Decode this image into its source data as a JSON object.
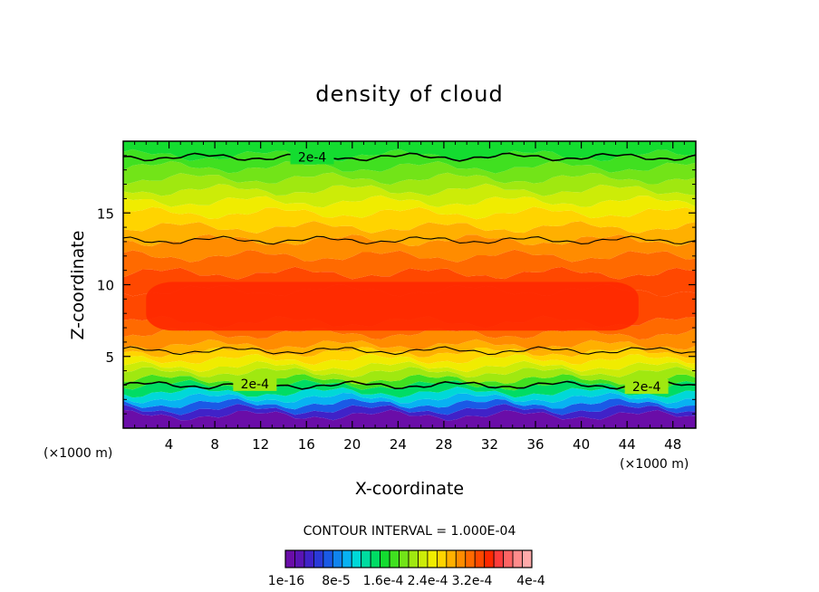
{
  "chart_data": {
    "type": "heatmap",
    "title": "density of cloud",
    "xlabel": "X-coordinate",
    "ylabel": "Z-coordinate",
    "x_unit_left": "(×1000 m)",
    "x_unit_right": "(×1000 m)",
    "xlim": [
      0,
      50
    ],
    "ylim": [
      0,
      20
    ],
    "x_ticks": [
      "4",
      "8",
      "12",
      "16",
      "20",
      "24",
      "28",
      "32",
      "36",
      "40",
      "44",
      "48"
    ],
    "y_ticks": [
      "5",
      "10",
      "15"
    ],
    "contour_interval_text": "CONTOUR INTERVAL = 1.000E-04",
    "contour_labels": [
      "2e-4",
      "2e-4",
      "2e-4"
    ],
    "colorbar_labels": [
      "1e-16",
      "8e-5",
      "1.6e-4",
      "2.4e-4",
      "3.2e-4",
      "4e-4"
    ],
    "colorbar_colors": [
      "#6a0da8",
      "#5a14b4",
      "#4022c8",
      "#2a3ad8",
      "#1a5ae6",
      "#1084ee",
      "#08b2f2",
      "#00d8d8",
      "#00dca0",
      "#00dc64",
      "#14dc30",
      "#40e020",
      "#72e418",
      "#a0e810",
      "#ccec08",
      "#f0ec00",
      "#ffd400",
      "#ffb000",
      "#ff8c00",
      "#ff6a00",
      "#ff4800",
      "#ff2800",
      "#ff3c3c",
      "#ff6464",
      "#ff8c8c",
      "#ffaaaa"
    ],
    "bands_by_height": [
      {
        "z": 0.0,
        "color": "#6a0da8"
      },
      {
        "z": 0.9,
        "color": "#4022c8"
      },
      {
        "z": 1.3,
        "color": "#1a5ae6"
      },
      {
        "z": 1.7,
        "color": "#08b2f2"
      },
      {
        "z": 2.1,
        "color": "#00d8d8"
      },
      {
        "z": 2.5,
        "color": "#00dc64"
      },
      {
        "z": 3.0,
        "color": "#40e020"
      },
      {
        "z": 3.4,
        "color": "#a0e810"
      },
      {
        "z": 3.9,
        "color": "#ccec08"
      },
      {
        "z": 4.3,
        "color": "#f0ec00"
      },
      {
        "z": 4.8,
        "color": "#ffd400"
      },
      {
        "z": 5.3,
        "color": "#ffb000"
      },
      {
        "z": 5.8,
        "color": "#ff8c00"
      },
      {
        "z": 6.6,
        "color": "#ff6a00"
      },
      {
        "z": 7.4,
        "color": "#ff4800"
      },
      {
        "z": 9.6,
        "color": "#ff4800"
      },
      {
        "z": 10.8,
        "color": "#ff6a00"
      },
      {
        "z": 12.0,
        "color": "#ff8c00"
      },
      {
        "z": 13.1,
        "color": "#ffb000"
      },
      {
        "z": 14.0,
        "color": "#ffd400"
      },
      {
        "z": 15.0,
        "color": "#f0ec00"
      },
      {
        "z": 15.8,
        "color": "#ccec08"
      },
      {
        "z": 16.6,
        "color": "#a0e810"
      },
      {
        "z": 17.4,
        "color": "#72e418"
      },
      {
        "z": 18.2,
        "color": "#40e020"
      },
      {
        "z": 19.0,
        "color": "#14dc30"
      }
    ],
    "core_region": {
      "x": [
        2,
        45
      ],
      "z": [
        6.8,
        10.2
      ],
      "color": "#ff2800"
    },
    "contours_z": [
      3.0,
      5.4,
      13.1,
      18.9
    ]
  }
}
